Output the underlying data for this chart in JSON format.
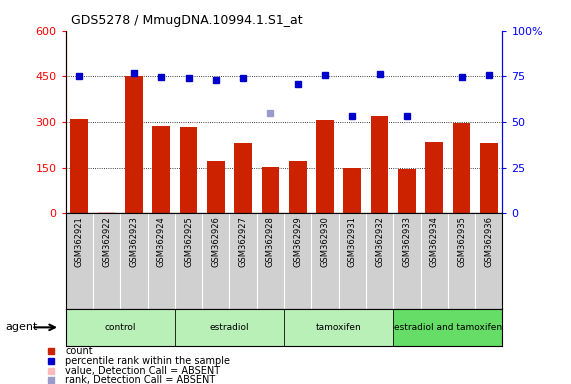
{
  "title": "GDS5278 / MmugDNA.10994.1.S1_at",
  "samples": [
    "GSM362921",
    "GSM362922",
    "GSM362923",
    "GSM362924",
    "GSM362925",
    "GSM362926",
    "GSM362927",
    "GSM362928",
    "GSM362929",
    "GSM362930",
    "GSM362931",
    "GSM362932",
    "GSM362933",
    "GSM362934",
    "GSM362935",
    "GSM362936"
  ],
  "counts": [
    310,
    null,
    450,
    285,
    283,
    172,
    230,
    152,
    173,
    305,
    147,
    318,
    145,
    235,
    295,
    230
  ],
  "counts_absent": [
    null,
    3,
    null,
    null,
    null,
    null,
    null,
    null,
    null,
    null,
    null,
    null,
    null,
    null,
    null,
    null
  ],
  "percentile_ranks": [
    450,
    null,
    462,
    448,
    443,
    437,
    444,
    null,
    425,
    453,
    320,
    458,
    320,
    null,
    447,
    453
  ],
  "percentile_ranks_absent": [
    null,
    null,
    null,
    null,
    null,
    null,
    null,
    330,
    null,
    null,
    null,
    null,
    null,
    null,
    null,
    null
  ],
  "groups": [
    {
      "label": "control",
      "start": 0,
      "end": 3,
      "color": "#b8f0b8"
    },
    {
      "label": "estradiol",
      "start": 4,
      "end": 7,
      "color": "#b8f0b8"
    },
    {
      "label": "tamoxifen",
      "start": 8,
      "end": 11,
      "color": "#b8f0b8"
    },
    {
      "label": "estradiol and tamoxifen",
      "start": 12,
      "end": 15,
      "color": "#66dd66"
    }
  ],
  "bar_color": "#cc2200",
  "bar_absent_color": "#ffbbbb",
  "dot_color": "#0000cc",
  "dot_absent_color": "#9999cc",
  "yticks_left": [
    0,
    150,
    300,
    450,
    600
  ],
  "ytick_labels_left": [
    "0",
    "150",
    "300",
    "450",
    "600"
  ],
  "ytick_labels_right": [
    "0",
    "25",
    "50",
    "75",
    "100%"
  ],
  "background_color": "#ffffff",
  "bar_width": 0.65
}
